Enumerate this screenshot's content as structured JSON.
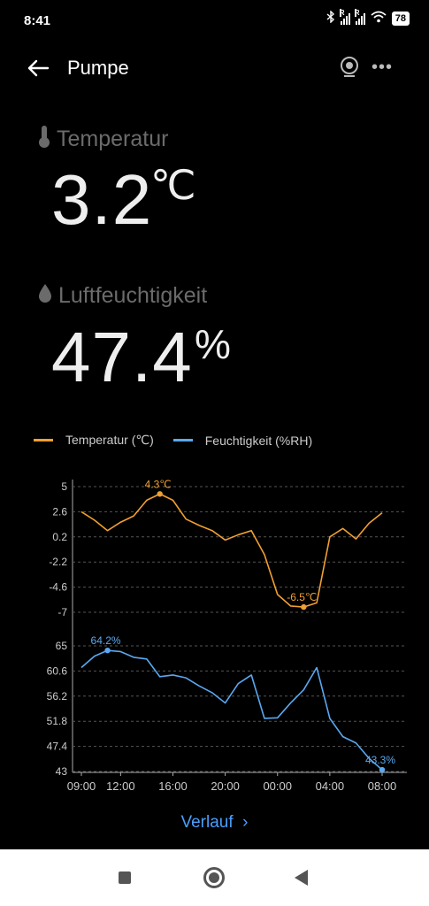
{
  "status": {
    "time": "8:41",
    "battery": "78"
  },
  "header": {
    "title": "Pumpe"
  },
  "temperature": {
    "label": "Temperatur",
    "value": "3.2",
    "unit": "℃"
  },
  "humidity": {
    "label": "Luftfeuchtigkeit",
    "value": "47.4",
    "unit": "%"
  },
  "legend": {
    "temp": "Temperatur (℃)",
    "hum": "Feuchtigkeit (%RH)"
  },
  "colors": {
    "temp": "#f0a030",
    "hum": "#5aa8f0",
    "link": "#4a9eff"
  },
  "chart_data": {
    "type": "line",
    "x_ticks": [
      "09:00",
      "12:00",
      "16:00",
      "20:00",
      "00:00",
      "04:00",
      "08:00"
    ],
    "temp_ticks": [
      "5",
      "2.6",
      "0.2",
      "-2.2",
      "-4.6",
      "-7"
    ],
    "hum_ticks": [
      "65",
      "60.6",
      "56.2",
      "51.8",
      "47.4",
      "43"
    ],
    "temp_range": [
      -7,
      5
    ],
    "hum_range": [
      43,
      65
    ],
    "grid": true,
    "series": [
      {
        "name": "Temperatur (℃)",
        "values": [
          2.6,
          1.8,
          0.8,
          1.6,
          2.2,
          3.7,
          4.3,
          3.7,
          1.9,
          1.3,
          0.8,
          -0.1,
          0.4,
          0.8,
          -1.5,
          -5.3,
          -6.4,
          -6.5,
          -6.1,
          0.2,
          1.0,
          0.0,
          1.5,
          2.5
        ]
      },
      {
        "name": "Feuchtigkeit (%RH)",
        "values": [
          61.2,
          63.2,
          64.2,
          64.0,
          63.0,
          62.7,
          59.6,
          59.9,
          59.4,
          58.0,
          56.8,
          55.0,
          58.4,
          59.9,
          52.3,
          52.4,
          55.0,
          57.3,
          61.2,
          52.3,
          49.1,
          48.0,
          45.3,
          43.3
        ]
      }
    ],
    "annotations": [
      {
        "series": "temp",
        "label": "4.3℃",
        "index": 6
      },
      {
        "series": "temp",
        "label": "-6.5℃",
        "index": 17
      },
      {
        "series": "hum",
        "label": "64.2%",
        "index": 2
      },
      {
        "series": "hum",
        "label": "43.3%",
        "index": 23
      }
    ]
  },
  "footer": {
    "history_label": "Verlauf"
  }
}
